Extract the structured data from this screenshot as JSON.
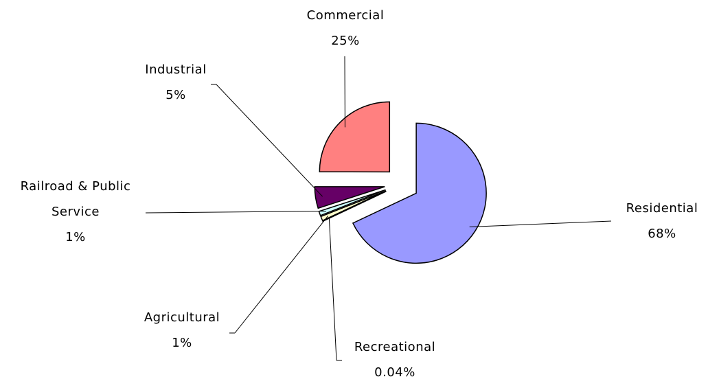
{
  "chart_data": {
    "type": "pie",
    "categories": [
      "Residential",
      "Recreational",
      "Agricultural",
      "Railroad & Public Service",
      "Industrial",
      "Commercial"
    ],
    "values": [
      68,
      0.04,
      1,
      1,
      5,
      25
    ],
    "value_labels": [
      "68%",
      "0.04%",
      "1%",
      "1%",
      "5%",
      "25%"
    ],
    "colors": [
      "#9999ff",
      "#3366cc",
      "#ffffcc",
      "#ccffff",
      "#660066",
      "#ff8080"
    ]
  }
}
